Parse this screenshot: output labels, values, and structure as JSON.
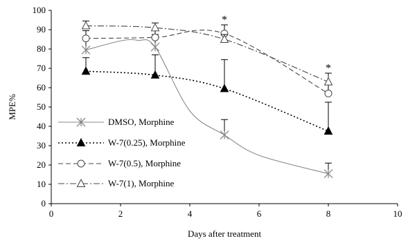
{
  "chart_data": {
    "type": "line",
    "xlabel": "Days after treatment",
    "ylabel": "MPE%",
    "xlim": [
      0,
      10
    ],
    "ylim": [
      0,
      100
    ],
    "x_ticks": [
      0,
      2,
      4,
      6,
      8,
      10
    ],
    "y_ticks": [
      0,
      10,
      20,
      30,
      40,
      50,
      60,
      70,
      80,
      90,
      100
    ],
    "grid": false,
    "legend_position": "left",
    "series": [
      {
        "name": "DMSO, Morphine",
        "marker": "asterisk",
        "line_style": "solid",
        "color": "#888888",
        "x": [
          1,
          3,
          5,
          8
        ],
        "y": [
          79.5,
          81,
          35.5,
          15.5
        ],
        "error_plus": [
          6,
          6.5,
          8,
          5.5
        ],
        "curve_extra": [
          [
            2,
            84.2
          ],
          [
            2.5,
            84.5
          ],
          [
            4,
            48
          ],
          [
            6,
            25
          ]
        ]
      },
      {
        "name": "W-7(0.25), Morphine",
        "marker": "filled-triangle",
        "line_style": "dotted",
        "color": "#000000",
        "x": [
          1,
          3,
          5,
          8
        ],
        "y": [
          68.5,
          66.5,
          59.5,
          37.5
        ],
        "error_plus": [
          7,
          10.5,
          15,
          15
        ]
      },
      {
        "name": "W-7(0.5), Morphine",
        "marker": "open-circle",
        "line_style": "dashed",
        "color": "#444444",
        "x": [
          1,
          3,
          5,
          8
        ],
        "y": [
          85.5,
          86,
          88,
          57
        ],
        "error_plus": [
          4,
          4,
          4.5,
          5
        ]
      },
      {
        "name": "W-7(1), Morphine",
        "marker": "open-triangle",
        "line_style": "dashdot",
        "color": "#444444",
        "x": [
          1,
          3,
          5,
          8
        ],
        "y": [
          92,
          91,
          85,
          63
        ],
        "error_plus": [
          2.5,
          2.5,
          2.5,
          4.5
        ]
      }
    ],
    "annotations": [
      {
        "text": "*",
        "x": 5,
        "y": 95.5
      },
      {
        "text": "*",
        "x": 8,
        "y": 70.5
      }
    ]
  }
}
